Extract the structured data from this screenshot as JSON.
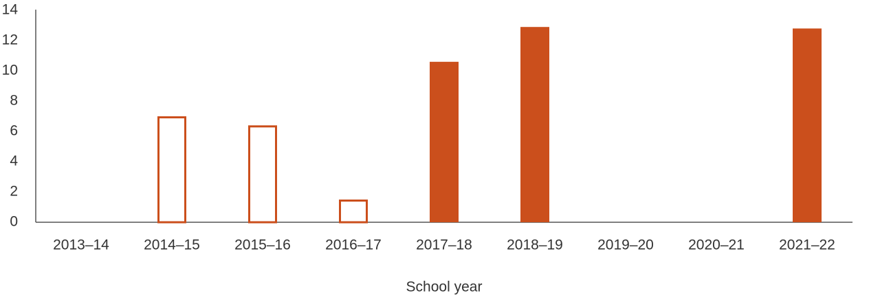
{
  "chart_data": {
    "type": "bar",
    "x_label": "School year",
    "categories": [
      "2013–14",
      "2014–15",
      "2015–16",
      "2016–17",
      "2017–18",
      "2018–19",
      "2019–20",
      "2020–21",
      "2021–22"
    ],
    "values": [
      null,
      7.0,
      6.4,
      1.5,
      10.6,
      12.9,
      null,
      null,
      12.8
    ],
    "bar_styles": [
      null,
      "outline",
      "outline",
      "outline",
      "filled",
      "filled",
      null,
      null,
      "filled"
    ],
    "color": "#cb4f1c",
    "ylim": [
      0,
      14
    ],
    "yticks": [
      0,
      2,
      4,
      6,
      8,
      10,
      12,
      14
    ],
    "grid": false
  }
}
